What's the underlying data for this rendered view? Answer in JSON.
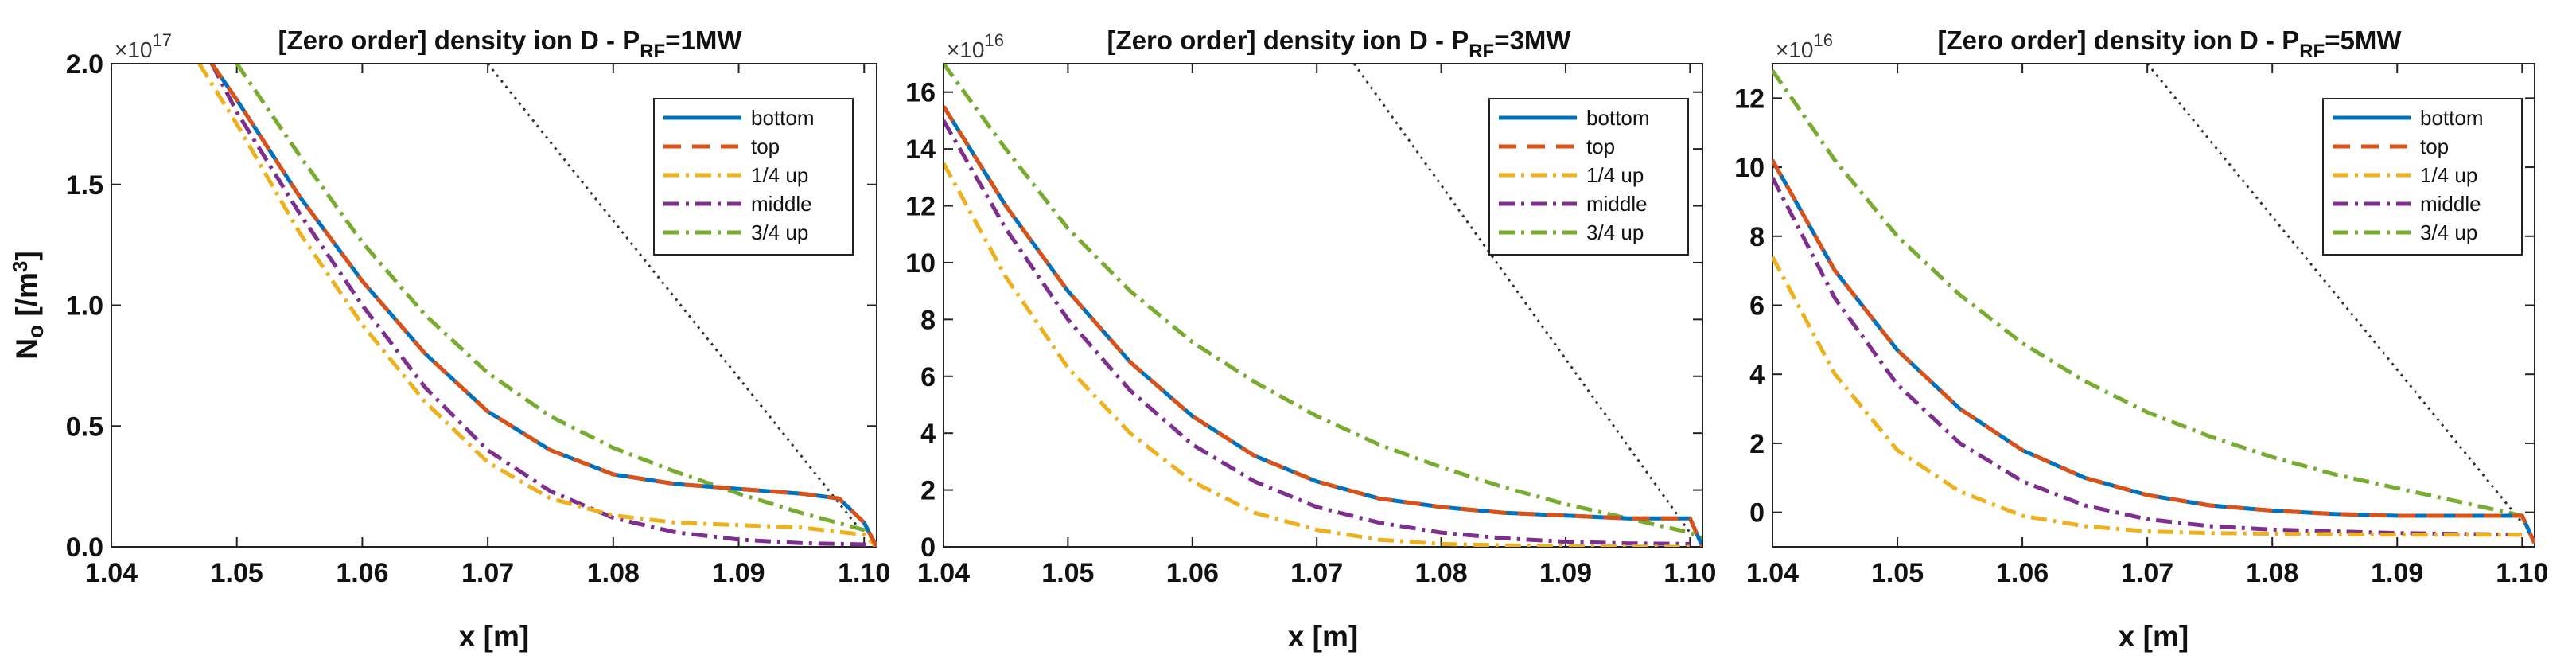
{
  "figure": {
    "ylabel_prefix": "N",
    "ylabel_sub": "o",
    "ylabel_suffix": " [/m",
    "ylabel_sup": "3",
    "ylabel_close": "]",
    "series_styles": [
      {
        "name": "bottom",
        "color": "#0072BD",
        "dash": "none"
      },
      {
        "name": "top",
        "color": "#D95319",
        "dash": "22,14"
      },
      {
        "name": "1/4 up",
        "color": "#EDB120",
        "dash": "20,8,4,8"
      },
      {
        "name": "middle",
        "color": "#7E2F8E",
        "dash": "20,8,4,8"
      },
      {
        "name": "3/4 up",
        "color": "#77AC30",
        "dash": "20,8,4,8"
      }
    ]
  },
  "chart_data": [
    {
      "type": "line",
      "title_prefix": "[Zero order] density ion D - P",
      "title_sub": "RF",
      "title_suffix": "=1MW",
      "xlabel": "x [m]",
      "exponent_base": "×10",
      "exponent_power": "17",
      "xlim": [
        1.04,
        1.101
      ],
      "ylim": [
        0,
        2.0
      ],
      "xticks": [
        1.04,
        1.05,
        1.06,
        1.07,
        1.08,
        1.09,
        1.1
      ],
      "xtick_labels": [
        "1.04",
        "1.05",
        "1.06",
        "1.07",
        "1.08",
        "1.09",
        "1.10"
      ],
      "yticks": [
        0,
        0.5,
        1.0,
        1.5,
        2.0
      ],
      "ytick_labels": [
        "0.0",
        "0.5",
        "1.0",
        "1.5",
        "2.0"
      ],
      "legend_labels": [
        "bottom",
        "top",
        "1/4 up",
        "middle",
        "3/4 up"
      ],
      "reference_line": {
        "x": [
          1.07,
          1.1
        ],
        "y": [
          2.0,
          0.05
        ]
      },
      "series": [
        {
          "name": "bottom",
          "x": [
            1.048,
            1.05,
            1.055,
            1.06,
            1.065,
            1.07,
            1.075,
            1.08,
            1.085,
            1.09,
            1.095,
            1.098,
            1.1,
            1.101
          ],
          "y": [
            2.0,
            1.85,
            1.45,
            1.1,
            0.8,
            0.56,
            0.4,
            0.3,
            0.26,
            0.24,
            0.22,
            0.2,
            0.1,
            0.0
          ]
        },
        {
          "name": "top",
          "x": [
            1.048,
            1.05,
            1.055,
            1.06,
            1.065,
            1.07,
            1.075,
            1.08,
            1.085,
            1.09,
            1.095,
            1.098,
            1.1,
            1.101
          ],
          "y": [
            2.0,
            1.85,
            1.45,
            1.1,
            0.8,
            0.56,
            0.4,
            0.3,
            0.26,
            0.24,
            0.22,
            0.2,
            0.1,
            0.0
          ]
        },
        {
          "name": "1/4 up",
          "x": [
            1.047,
            1.05,
            1.055,
            1.06,
            1.065,
            1.07,
            1.075,
            1.08,
            1.085,
            1.09,
            1.095,
            1.1,
            1.101
          ],
          "y": [
            2.0,
            1.75,
            1.3,
            0.92,
            0.6,
            0.35,
            0.2,
            0.13,
            0.1,
            0.09,
            0.08,
            0.05,
            0.0
          ]
        },
        {
          "name": "middle",
          "x": [
            1.048,
            1.05,
            1.055,
            1.06,
            1.065,
            1.07,
            1.075,
            1.08,
            1.085,
            1.09,
            1.095,
            1.1,
            1.101
          ],
          "y": [
            2.0,
            1.8,
            1.38,
            1.0,
            0.66,
            0.4,
            0.23,
            0.12,
            0.06,
            0.03,
            0.015,
            0.01,
            0.0
          ]
        },
        {
          "name": "3/4 up",
          "x": [
            1.05,
            1.055,
            1.06,
            1.065,
            1.07,
            1.075,
            1.08,
            1.085,
            1.09,
            1.095,
            1.1,
            1.101
          ],
          "y": [
            2.0,
            1.62,
            1.26,
            0.96,
            0.72,
            0.54,
            0.41,
            0.31,
            0.22,
            0.14,
            0.07,
            0.02
          ]
        }
      ]
    },
    {
      "type": "line",
      "title_prefix": "[Zero order] density ion D - P",
      "title_sub": "RF",
      "title_suffix": "=3MW",
      "xlabel": "x [m]",
      "exponent_base": "×10",
      "exponent_power": "16",
      "xlim": [
        1.04,
        1.101
      ],
      "ylim": [
        0,
        17
      ],
      "xticks": [
        1.04,
        1.05,
        1.06,
        1.07,
        1.08,
        1.09,
        1.1
      ],
      "xtick_labels": [
        "1.04",
        "1.05",
        "1.06",
        "1.07",
        "1.08",
        "1.09",
        "1.10"
      ],
      "yticks": [
        0,
        2,
        4,
        6,
        8,
        10,
        12,
        14,
        16
      ],
      "ytick_labels": [
        "0",
        "2",
        "4",
        "6",
        "8",
        "10",
        "12",
        "14",
        "16"
      ],
      "legend_labels": [
        "bottom",
        "top",
        "1/4 up",
        "middle",
        "3/4 up"
      ],
      "reference_line": {
        "x": [
          1.073,
          1.1
        ],
        "y": [
          17,
          0.5
        ]
      },
      "series": [
        {
          "name": "bottom",
          "x": [
            1.04,
            1.045,
            1.05,
            1.055,
            1.06,
            1.065,
            1.07,
            1.075,
            1.08,
            1.085,
            1.09,
            1.095,
            1.1,
            1.101
          ],
          "y": [
            15.5,
            12.0,
            9.0,
            6.5,
            4.6,
            3.2,
            2.3,
            1.7,
            1.4,
            1.2,
            1.1,
            1.0,
            1.0,
            0.0
          ]
        },
        {
          "name": "top",
          "x": [
            1.04,
            1.045,
            1.05,
            1.055,
            1.06,
            1.065,
            1.07,
            1.075,
            1.08,
            1.085,
            1.09,
            1.095,
            1.1,
            1.101
          ],
          "y": [
            15.5,
            12.0,
            9.0,
            6.5,
            4.6,
            3.2,
            2.3,
            1.7,
            1.4,
            1.2,
            1.1,
            1.0,
            1.0,
            0.0
          ]
        },
        {
          "name": "1/4 up",
          "x": [
            1.04,
            1.045,
            1.05,
            1.055,
            1.06,
            1.065,
            1.07,
            1.075,
            1.08,
            1.085,
            1.09,
            1.1
          ],
          "y": [
            13.5,
            9.5,
            6.3,
            4.0,
            2.3,
            1.2,
            0.6,
            0.25,
            0.1,
            0.05,
            0.02,
            0.0
          ]
        },
        {
          "name": "middle",
          "x": [
            1.04,
            1.045,
            1.05,
            1.055,
            1.06,
            1.065,
            1.07,
            1.075,
            1.08,
            1.085,
            1.09,
            1.095,
            1.1
          ],
          "y": [
            15.0,
            11.2,
            8.0,
            5.5,
            3.6,
            2.3,
            1.4,
            0.85,
            0.5,
            0.3,
            0.18,
            0.12,
            0.1
          ]
        },
        {
          "name": "3/4 up",
          "x": [
            1.04,
            1.045,
            1.05,
            1.055,
            1.06,
            1.065,
            1.07,
            1.075,
            1.08,
            1.085,
            1.09,
            1.095,
            1.1,
            1.101
          ],
          "y": [
            17.0,
            14.0,
            11.2,
            9.0,
            7.2,
            5.8,
            4.6,
            3.6,
            2.8,
            2.1,
            1.5,
            1.0,
            0.5,
            0.3
          ]
        }
      ]
    },
    {
      "type": "line",
      "title_prefix": "[Zero order] density ion D - P",
      "title_sub": "RF",
      "title_suffix": "=5MW",
      "xlabel": "x [m]",
      "exponent_base": "×10",
      "exponent_power": "16",
      "xlim": [
        1.04,
        1.101
      ],
      "ylim": [
        -1,
        13
      ],
      "xticks": [
        1.04,
        1.05,
        1.06,
        1.07,
        1.08,
        1.09,
        1.1
      ],
      "xtick_labels": [
        "1.04",
        "1.05",
        "1.06",
        "1.07",
        "1.08",
        "1.09",
        "1.10"
      ],
      "yticks": [
        0,
        2,
        4,
        6,
        8,
        10,
        12
      ],
      "ytick_labels": [
        "0",
        "2",
        "4",
        "6",
        "8",
        "10",
        "12"
      ],
      "legend_labels": [
        "bottom",
        "top",
        "1/4 up",
        "middle",
        "3/4 up"
      ],
      "reference_line": {
        "x": [
          1.07,
          1.1
        ],
        "y": [
          13,
          -0.3
        ]
      },
      "series": [
        {
          "name": "bottom",
          "x": [
            1.04,
            1.045,
            1.05,
            1.055,
            1.06,
            1.065,
            1.07,
            1.075,
            1.08,
            1.085,
            1.09,
            1.095,
            1.1,
            1.101
          ],
          "y": [
            10.2,
            7.0,
            4.7,
            3.0,
            1.8,
            1.0,
            0.5,
            0.2,
            0.05,
            -0.05,
            -0.1,
            -0.1,
            -0.1,
            -0.9
          ]
        },
        {
          "name": "top",
          "x": [
            1.04,
            1.045,
            1.05,
            1.055,
            1.06,
            1.065,
            1.07,
            1.075,
            1.08,
            1.085,
            1.09,
            1.095,
            1.1,
            1.101
          ],
          "y": [
            10.2,
            7.0,
            4.7,
            3.0,
            1.8,
            1.0,
            0.5,
            0.2,
            0.05,
            -0.05,
            -0.1,
            -0.1,
            -0.1,
            -0.9
          ]
        },
        {
          "name": "1/4 up",
          "x": [
            1.04,
            1.045,
            1.05,
            1.055,
            1.06,
            1.065,
            1.07,
            1.075,
            1.08,
            1.09,
            1.1
          ],
          "y": [
            7.4,
            4.0,
            1.8,
            0.6,
            -0.1,
            -0.4,
            -0.55,
            -0.6,
            -0.62,
            -0.65,
            -0.65
          ]
        },
        {
          "name": "middle",
          "x": [
            1.04,
            1.045,
            1.05,
            1.055,
            1.06,
            1.065,
            1.07,
            1.075,
            1.08,
            1.09,
            1.1
          ],
          "y": [
            9.7,
            6.2,
            3.7,
            2.0,
            0.9,
            0.2,
            -0.2,
            -0.4,
            -0.5,
            -0.6,
            -0.65
          ]
        },
        {
          "name": "3/4 up",
          "x": [
            1.04,
            1.045,
            1.05,
            1.055,
            1.06,
            1.065,
            1.07,
            1.075,
            1.08,
            1.085,
            1.09,
            1.095,
            1.1
          ],
          "y": [
            12.8,
            10.2,
            8.0,
            6.3,
            4.9,
            3.8,
            2.9,
            2.2,
            1.6,
            1.1,
            0.7,
            0.3,
            -0.1
          ]
        }
      ]
    }
  ]
}
